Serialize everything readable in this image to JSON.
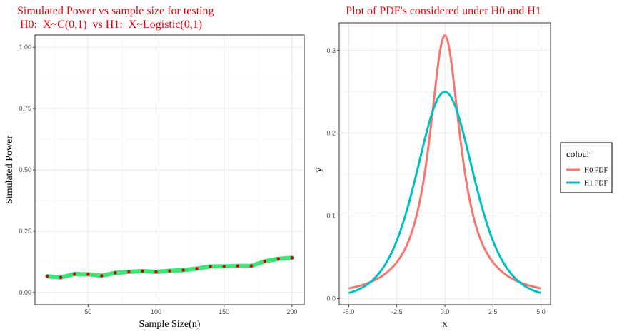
{
  "chart_data": [
    {
      "type": "line",
      "title_line1": "Simulated Power vs sample size for testing",
      "title_line2": " H0:  X~C(0,1)  vs H1:  X~Logistic(0,1)",
      "xlabel": "Sample Size(n)",
      "ylabel": "Simulated Power",
      "xlim": [
        11,
        209
      ],
      "ylim": [
        -0.05,
        1.05
      ],
      "xticks": [
        50,
        100,
        150,
        200
      ],
      "yticks": [
        0.0,
        0.25,
        0.5,
        0.75,
        1.0
      ],
      "ytick_labels": [
        "0.00",
        "0.25",
        "0.50",
        "0.75",
        "1.00"
      ],
      "line_color": "#3ee37a",
      "point_color": "#cc0000",
      "x": [
        20,
        30,
        40,
        50,
        60,
        70,
        80,
        90,
        100,
        110,
        120,
        130,
        140,
        150,
        160,
        170,
        180,
        190,
        200
      ],
      "values": [
        0.066,
        0.061,
        0.075,
        0.074,
        0.068,
        0.08,
        0.084,
        0.087,
        0.084,
        0.088,
        0.091,
        0.097,
        0.106,
        0.106,
        0.108,
        0.108,
        0.127,
        0.137,
        0.141
      ],
      "grid": true
    },
    {
      "type": "line",
      "title": "Plot of PDF's considered under H0 and H1",
      "xlabel": "x",
      "ylabel": "y",
      "xlim": [
        -5.5,
        5.5
      ],
      "ylim": [
        -0.0075,
        0.3335
      ],
      "xticks": [
        -5.0,
        -2.5,
        0.0,
        2.5,
        5.0
      ],
      "xtick_labels": [
        "-5.0",
        "-2.5",
        "0.0",
        "2.5",
        "5.0"
      ],
      "yticks": [
        0.0,
        0.1,
        0.2,
        0.3
      ],
      "ytick_labels": [
        "0.0",
        "0.1",
        "0.2",
        "0.3"
      ],
      "x_range": [
        -5,
        5
      ],
      "grid": true,
      "legend_title": "colour",
      "legend_position": "right",
      "series": [
        {
          "name": "H0 PDF",
          "distribution": "Cauchy(0,1)",
          "color": "#f8766d"
        },
        {
          "name": "H1 PDF",
          "distribution": "Logistic(0,1)",
          "color": "#00bfc4"
        }
      ]
    }
  ]
}
